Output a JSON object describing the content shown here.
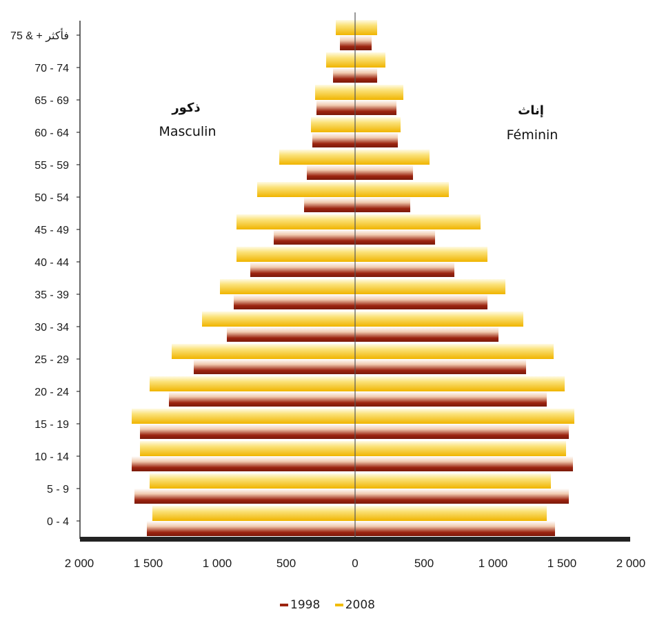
{
  "chart_data": {
    "type": "bar",
    "orientation": "horizontal",
    "layout": "population-pyramid",
    "left_label_ar": "ذكور",
    "left_label_fr": "Masculin",
    "right_label_ar": "إناث",
    "right_label_fr": "Féminin",
    "categories": [
      "0 - 4",
      "5 - 9",
      "10 - 14",
      "15 - 19",
      "20 - 24",
      "25 - 29",
      "30 - 34",
      "35 - 39",
      "40 - 44",
      "45 - 49",
      "50 - 54",
      "55 - 59",
      "60 - 64",
      "65 - 69",
      "70 - 74",
      "75 & + فأكثر"
    ],
    "xticks": [
      "2 000",
      "1 500",
      "1 000",
      "500",
      "0",
      "500",
      "1 000",
      "1 500",
      "2 000"
    ],
    "xlim": [
      -2000,
      2000
    ],
    "series": [
      {
        "name": "1998",
        "color": "#9c2410",
        "male": [
          1510,
          1600,
          1620,
          1560,
          1350,
          1170,
          930,
          880,
          760,
          590,
          370,
          350,
          310,
          280,
          160,
          110
        ],
        "female": [
          1450,
          1550,
          1580,
          1550,
          1390,
          1240,
          1040,
          960,
          720,
          580,
          400,
          420,
          310,
          300,
          160,
          120
        ]
      },
      {
        "name": "2008",
        "color": "#f2bc00",
        "male": [
          1470,
          1490,
          1560,
          1620,
          1490,
          1330,
          1110,
          980,
          860,
          860,
          710,
          550,
          320,
          290,
          210,
          140
        ],
        "female": [
          1390,
          1420,
          1530,
          1590,
          1520,
          1440,
          1220,
          1090,
          960,
          910,
          680,
          540,
          330,
          350,
          220,
          160
        ]
      }
    ]
  },
  "legend": {
    "items": [
      "1998",
      "2008"
    ]
  }
}
